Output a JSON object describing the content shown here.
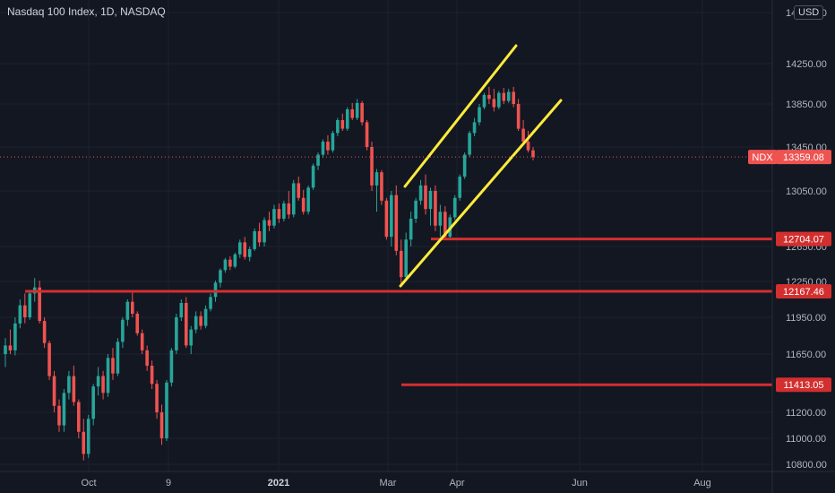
{
  "header": {
    "title": "Nasdaq 100 Index, 1D, NASDAQ",
    "currency": "USD"
  },
  "colors": {
    "background": "#131722",
    "grid": "#1e222d",
    "up": "#26a69a",
    "down": "#ef5350",
    "level_line": "#d32f2f",
    "channel": "#ffeb3b",
    "label_bg": "#d32f2f",
    "axis_text": "#b2b5be"
  },
  "chart_data": {
    "type": "candlestick",
    "symbol": "NDX",
    "last_price": "13359.08",
    "ylim": [
      10700,
      14500
    ],
    "y_ticks": [
      "14450.00",
      "14250.00",
      "13850.00",
      "13450.00",
      "13050.00",
      "12650.00",
      "12250.00",
      "11950.00",
      "11650.00",
      "11200.00",
      "11000.00",
      "10800.00"
    ],
    "x_ticks": [
      {
        "label": "Oct",
        "bold": false
      },
      {
        "label": "9",
        "bold": false
      },
      {
        "label": "2021",
        "bold": true
      },
      {
        "label": "Mar",
        "bold": false
      },
      {
        "label": "Apr",
        "bold": false
      },
      {
        "label": "Jun",
        "bold": false
      },
      {
        "label": "Aug",
        "bold": false
      }
    ],
    "horizontal_levels": [
      "12704.07",
      "12167.46",
      "11413.05"
    ],
    "channel_lines": [
      {
        "from": {
          "date": "Mar",
          "value": 13080
        },
        "to": {
          "date": "Apr",
          "value": 14380
        }
      },
      {
        "from": {
          "date": "Mar",
          "value": 12230
        },
        "to": {
          "date": "Apr",
          "value": 13760
        }
      }
    ],
    "candles": [
      [
        11650,
        11780,
        11550,
        11720
      ],
      [
        11720,
        11850,
        11650,
        11680
      ],
      [
        11680,
        11950,
        11640,
        11900
      ],
      [
        11900,
        12100,
        11860,
        12050
      ],
      [
        12050,
        12150,
        11900,
        11950
      ],
      [
        11950,
        12180,
        11930,
        12150
      ],
      [
        12150,
        12290,
        12080,
        12200
      ],
      [
        12200,
        12260,
        11900,
        11920
      ],
      [
        11920,
        11950,
        11700,
        11740
      ],
      [
        11740,
        11760,
        11450,
        11480
      ],
      [
        11480,
        11520,
        11200,
        11250
      ],
      [
        11250,
        11300,
        11050,
        11100
      ],
      [
        11100,
        11380,
        11050,
        11350
      ],
      [
        11350,
        11520,
        11300,
        11480
      ],
      [
        11480,
        11560,
        11250,
        11280
      ],
      [
        11280,
        11300,
        11000,
        11050
      ],
      [
        11050,
        11150,
        10830,
        10880
      ],
      [
        10880,
        11180,
        10850,
        11150
      ],
      [
        11150,
        11420,
        11100,
        11400
      ],
      [
        11400,
        11550,
        11330,
        11480
      ],
      [
        11480,
        11520,
        11300,
        11350
      ],
      [
        11350,
        11650,
        11320,
        11620
      ],
      [
        11620,
        11700,
        11450,
        11500
      ],
      [
        11500,
        11780,
        11480,
        11750
      ],
      [
        11750,
        11950,
        11700,
        11930
      ],
      [
        11930,
        12100,
        11880,
        12080
      ],
      [
        12080,
        12160,
        11950,
        11980
      ],
      [
        11980,
        12000,
        11800,
        11820
      ],
      [
        11820,
        11850,
        11650,
        11680
      ],
      [
        11680,
        11720,
        11520,
        11560
      ],
      [
        11560,
        11600,
        11380,
        11420
      ],
      [
        11420,
        11450,
        11150,
        11200
      ],
      [
        11200,
        11260,
        10950,
        11000
      ],
      [
        11000,
        11450,
        10980,
        11430
      ],
      [
        11430,
        11700,
        11400,
        11680
      ],
      [
        11680,
        11980,
        11650,
        11950
      ],
      [
        11950,
        12100,
        11920,
        12070
      ],
      [
        12070,
        12120,
        11700,
        11720
      ],
      [
        11720,
        11880,
        11650,
        11850
      ],
      [
        11850,
        12000,
        11820,
        11960
      ],
      [
        11960,
        12000,
        11850,
        11880
      ],
      [
        11880,
        12050,
        11860,
        12020
      ],
      [
        12020,
        12150,
        12000,
        12120
      ],
      [
        12120,
        12260,
        12080,
        12240
      ],
      [
        12240,
        12400,
        12200,
        12380
      ],
      [
        12380,
        12520,
        12350,
        12500
      ],
      [
        12500,
        12540,
        12380,
        12420
      ],
      [
        12420,
        12580,
        12400,
        12560
      ],
      [
        12560,
        12700,
        12520,
        12680
      ],
      [
        12680,
        12720,
        12500,
        12530
      ],
      [
        12530,
        12650,
        12480,
        12620
      ],
      [
        12620,
        12780,
        12600,
        12760
      ],
      [
        12760,
        12820,
        12650,
        12680
      ],
      [
        12680,
        12860,
        12650,
        12840
      ],
      [
        12840,
        12900,
        12760,
        12800
      ],
      [
        12800,
        12950,
        12780,
        12920
      ],
      [
        12920,
        12960,
        12820,
        12850
      ],
      [
        12850,
        12980,
        12830,
        12960
      ],
      [
        12960,
        13050,
        12850,
        12880
      ],
      [
        12880,
        13150,
        12860,
        13120
      ],
      [
        13120,
        13180,
        12980,
        13000
      ],
      [
        13000,
        13060,
        12880,
        12900
      ],
      [
        12900,
        13100,
        12880,
        13080
      ],
      [
        13080,
        13300,
        13060,
        13280
      ],
      [
        13280,
        13400,
        13240,
        13380
      ],
      [
        13380,
        13520,
        13350,
        13500
      ],
      [
        13500,
        13560,
        13380,
        13420
      ],
      [
        13420,
        13600,
        13400,
        13580
      ],
      [
        13580,
        13720,
        13550,
        13700
      ],
      [
        13700,
        13760,
        13600,
        13620
      ],
      [
        13620,
        13820,
        13600,
        13800
      ],
      [
        13800,
        13860,
        13700,
        13720
      ],
      [
        13720,
        13900,
        13700,
        13860
      ],
      [
        13860,
        13880,
        13650,
        13680
      ],
      [
        13680,
        13700,
        13420,
        13450
      ],
      [
        13450,
        13500,
        13050,
        13100
      ],
      [
        13100,
        13250,
        12900,
        13220
      ],
      [
        13220,
        13240,
        12950,
        12980
      ],
      [
        12980,
        13000,
        12700,
        12720
      ],
      [
        12720,
        13050,
        12650,
        13020
      ],
      [
        13020,
        13100,
        12550,
        12600
      ],
      [
        12600,
        12700,
        12230,
        12300
      ],
      [
        12300,
        12750,
        12280,
        12700
      ],
      [
        12700,
        12900,
        12650,
        12850
      ],
      [
        12850,
        13000,
        12820,
        12980
      ],
      [
        12980,
        13150,
        12950,
        13100
      ],
      [
        13100,
        13200,
        12880,
        12920
      ],
      [
        12920,
        13080,
        12800,
        13050
      ],
      [
        13050,
        13100,
        12760,
        12800
      ],
      [
        12800,
        12950,
        12720,
        12900
      ],
      [
        12900,
        12940,
        12700,
        12720
      ],
      [
        12720,
        12880,
        12700,
        12860
      ],
      [
        12860,
        13020,
        12840,
        13000
      ],
      [
        13000,
        13200,
        12980,
        13180
      ],
      [
        13180,
        13400,
        13160,
        13380
      ],
      [
        13380,
        13600,
        13360,
        13580
      ],
      [
        13580,
        13720,
        13550,
        13680
      ],
      [
        13680,
        13850,
        13650,
        13820
      ],
      [
        13820,
        13960,
        13800,
        13940
      ],
      [
        13940,
        14020,
        13850,
        13900
      ],
      [
        13900,
        14000,
        13780,
        13820
      ],
      [
        13820,
        13980,
        13800,
        13960
      ],
      [
        13960,
        14010,
        13850,
        13880
      ],
      [
        13880,
        14000,
        13860,
        13970
      ],
      [
        13970,
        14020,
        13820,
        13850
      ],
      [
        13850,
        13900,
        13600,
        13620
      ],
      [
        13620,
        13700,
        13480,
        13500
      ],
      [
        13500,
        13600,
        13400,
        13420
      ],
      [
        13420,
        13450,
        13330,
        13359
      ]
    ]
  }
}
